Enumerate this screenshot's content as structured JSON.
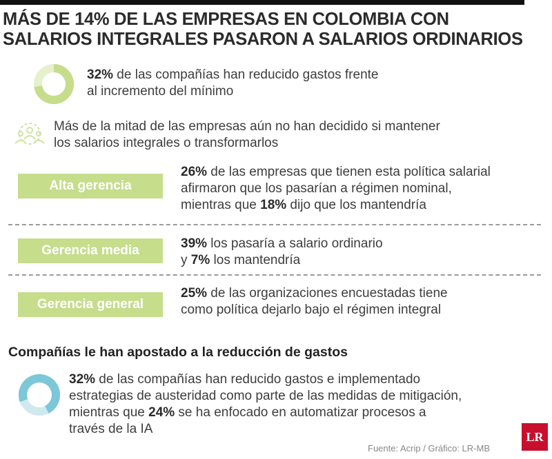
{
  "header": {
    "title_lines": [
      "MÁS DE 14% DE LAS EMPRESAS EN COLOMBIA CON",
      "SALARIOS INTEGRALES PASARON A SALARIOS ORDINARIOS"
    ]
  },
  "items": [
    {
      "lines": [
        [
          {
            "t": "32%",
            "b": true
          },
          {
            "t": " de las compañías han reducido gastos frente"
          }
        ],
        [
          {
            "t": "al incremento del mínimo"
          }
        ]
      ]
    },
    {
      "lines": [
        [
          {
            "t": "Más de la mitad de las empresas aún no han decidido si mantener"
          }
        ],
        [
          {
            "t": "los salarios integrales o transformarlos"
          }
        ]
      ]
    }
  ],
  "levels": [
    {
      "label": "Alta gerencia",
      "lines": [
        [
          {
            "t": "26%",
            "b": true
          },
          {
            "t": " de las empresas que tienen esta política salarial"
          }
        ],
        [
          {
            "t": "afirmaron que los pasarían a régimen nominal,"
          }
        ],
        [
          {
            "t": "mientras que "
          },
          {
            "t": "18%",
            "b": true
          },
          {
            "t": " dijo que los mantendría"
          }
        ]
      ]
    },
    {
      "label": "Gerencia media",
      "lines": [
        [
          {
            "t": "39%",
            "b": true
          },
          {
            "t": " los pasaría a salario ordinario"
          }
        ],
        [
          {
            "t": "y "
          },
          {
            "t": "7%",
            "b": true
          },
          {
            "t": " los mantendría"
          }
        ]
      ]
    },
    {
      "label": "Gerencia general",
      "lines": [
        [
          {
            "t": "25%",
            "b": true
          },
          {
            "t": " de las organizaciones encuestadas tiene"
          }
        ],
        [
          {
            "t": "como política dejarlo bajo el régimen integral"
          }
        ]
      ]
    }
  ],
  "section": {
    "heading": "Compañías le han apostado a la reducción de gastos",
    "lines": [
      [
        {
          "t": "32%",
          "b": true
        },
        {
          "t": " de las compañías han reducido gastos e implementado"
        }
      ],
      [
        {
          "t": "estrategias de austeridad como parte de las medidas de mitigación,"
        }
      ],
      [
        {
          "t": "mientras que "
        },
        {
          "t": "24%",
          "b": true
        },
        {
          "t": " se ha enfocado en automatizar procesos a"
        }
      ],
      [
        {
          "t": "través de la IA"
        }
      ]
    ]
  },
  "source": "Fuente: Acrip / Gráfico: LR-MB",
  "logo": "LR"
}
